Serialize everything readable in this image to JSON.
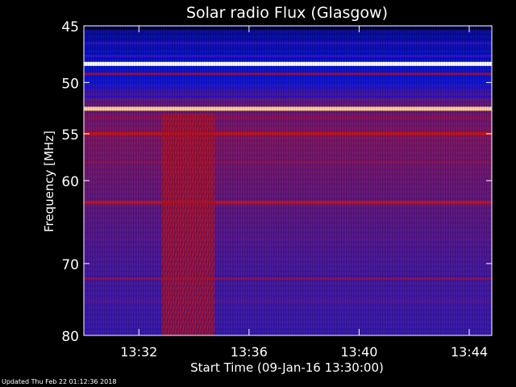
{
  "chart_data": {
    "type": "heatmap",
    "title": "Solar radio Flux (Glasgow)",
    "xlabel": "Start Time (09-Jan-16 13:30:00)",
    "ylabel": "Frequency [MHz]",
    "ylim": [
      45,
      80
    ],
    "xlim_minutes": [
      13.5,
      13.747
    ],
    "y_ticks": [
      "45",
      "50",
      "55",
      "60",
      "70",
      "80"
    ],
    "x_ticks": [
      "13:32",
      "13:36",
      "13:40",
      "13:44"
    ],
    "colormap": [
      "#00001a",
      "#0a0a9a",
      "#2a10c8",
      "#5a1590",
      "#8a1050",
      "#c01018",
      "#ff5010",
      "#ffd090",
      "#ffffff"
    ],
    "bands": [
      {
        "freq": 45.2,
        "level": 0.05
      },
      {
        "freq": 46.5,
        "level": 0.28
      },
      {
        "freq": 47.6,
        "level": 0.22
      },
      {
        "freq": 48.3,
        "level": 0.95
      },
      {
        "freq": 49.2,
        "level": 0.45
      },
      {
        "freq": 50.5,
        "level": 0.2
      },
      {
        "freq": 51.3,
        "level": 0.25
      },
      {
        "freq": 52.5,
        "level": 0.9
      },
      {
        "freq": 53.3,
        "level": 0.55
      },
      {
        "freq": 55.0,
        "level": 0.58
      },
      {
        "freq": 58.0,
        "level": 0.5
      },
      {
        "freq": 62.5,
        "level": 0.62
      },
      {
        "freq": 66.8,
        "level": 0.42
      },
      {
        "freq": 72.0,
        "level": 0.47
      },
      {
        "freq": 75.0,
        "level": 0.38
      }
    ],
    "burst": {
      "start": "13:32:50",
      "end": "13:34:45",
      "freq_range": [
        53,
        80
      ],
      "level": 0.48
    }
  },
  "footer": {
    "updated": "Updated Thu Feb 22 01:12:36 2018"
  }
}
